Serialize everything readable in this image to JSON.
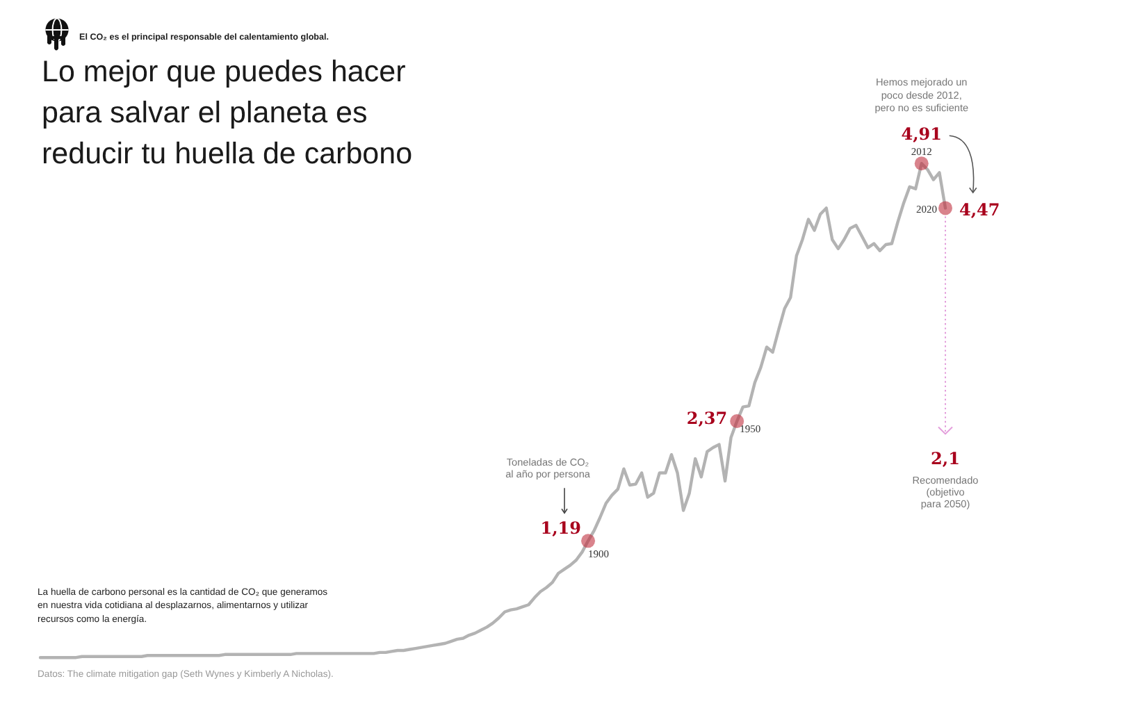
{
  "chart_data": {
    "type": "line",
    "title": "Lo mejor que puedes hacer\npara salvar el planeta es\nreducir tu huella de carbono",
    "subtitle": "El CO₂ es el principal responsable del calentamiento global.",
    "ylabel": "Toneladas de CO₂\nal año por persona",
    "color": "#b3b3b3",
    "categories": [
      null,
      null,
      null,
      null,
      null,
      null,
      null,
      null,
      null,
      null,
      null,
      null,
      null,
      null,
      null,
      null,
      null,
      null,
      null,
      null,
      null,
      null,
      null,
      null,
      null,
      null,
      null,
      null,
      null,
      null,
      null,
      null,
      null,
      null,
      null,
      null,
      null,
      null,
      null,
      null,
      null,
      null,
      null,
      null,
      null,
      null,
      null,
      null,
      null,
      null,
      null,
      null,
      null,
      null,
      null,
      null,
      null,
      null,
      null,
      null,
      null,
      null,
      null,
      null,
      null,
      null,
      null,
      null,
      null,
      null,
      null,
      null,
      null,
      null,
      null,
      null,
      null,
      null,
      null,
      null,
      null,
      null,
      null,
      null,
      null,
      null,
      null,
      null,
      null,
      null,
      null,
      null,
      null,
      null,
      null,
      null,
      null,
      null,
      null,
      null,
      null,
      null,
      null,
      null,
      null,
      null,
      null,
      null,
      null,
      null,
      null,
      null,
      null,
      null,
      null,
      null,
      null,
      null,
      null,
      null,
      null,
      null,
      null,
      null,
      null,
      null,
      null,
      null,
      null,
      null,
      null,
      null,
      null,
      null,
      null,
      null,
      null,
      null,
      null,
      null,
      null,
      null,
      null,
      null,
      null,
      null,
      null,
      null,
      null,
      null,
      null,
      null,
      null
    ],
    "values": [
      0.04,
      0.04,
      0.04,
      0.04,
      0.04,
      0.04,
      0.04,
      0.05,
      0.05,
      0.05,
      0.05,
      0.05,
      0.05,
      0.05,
      0.05,
      0.05,
      0.05,
      0.05,
      0.06,
      0.06,
      0.06,
      0.06,
      0.06,
      0.06,
      0.06,
      0.06,
      0.06,
      0.06,
      0.06,
      0.06,
      0.06,
      0.07,
      0.07,
      0.07,
      0.07,
      0.07,
      0.07,
      0.07,
      0.07,
      0.07,
      0.07,
      0.07,
      0.07,
      0.08,
      0.08,
      0.08,
      0.08,
      0.08,
      0.08,
      0.08,
      0.08,
      0.08,
      0.08,
      0.08,
      0.08,
      0.08,
      0.08,
      0.09,
      0.09,
      0.1,
      0.11,
      0.11,
      0.12,
      0.13,
      0.14,
      0.15,
      0.16,
      0.17,
      0.18,
      0.2,
      0.22,
      0.23,
      0.26,
      0.28,
      0.31,
      0.34,
      0.38,
      0.43,
      0.49,
      0.51,
      0.52,
      0.54,
      0.56,
      0.63,
      0.69,
      0.73,
      0.78,
      0.87,
      0.91,
      0.95,
      1.0,
      1.08,
      1.19,
      1.29,
      1.42,
      1.56,
      1.64,
      1.7,
      1.9,
      1.74,
      1.75,
      1.86,
      1.62,
      1.66,
      1.86,
      1.86,
      2.04,
      1.86,
      1.49,
      1.66,
      2.0,
      1.82,
      2.07,
      2.11,
      2.14,
      1.78,
      2.21,
      2.37,
      2.51,
      2.52,
      2.75,
      2.9,
      3.1,
      3.05,
      3.27,
      3.48,
      3.59,
      4.0,
      4.16,
      4.36,
      4.25,
      4.41,
      4.47,
      4.16,
      4.07,
      4.16,
      4.27,
      4.3,
      4.19,
      4.08,
      4.12,
      4.05,
      4.11,
      4.12,
      4.33,
      4.52,
      4.68,
      4.66,
      4.91,
      4.85,
      4.75,
      4.82,
      4.47
    ],
    "value_labels": [
      null,
      null,
      null,
      null,
      null,
      null,
      null,
      null,
      null,
      null,
      null,
      null,
      null,
      null,
      null,
      null,
      null,
      null,
      null,
      null,
      null,
      null,
      null,
      null,
      null,
      null,
      null,
      null,
      null,
      null,
      null,
      null,
      null,
      null,
      null,
      null,
      null,
      null,
      null,
      null,
      null,
      null,
      null,
      null,
      null,
      null,
      null,
      null,
      null,
      null,
      null,
      null,
      null,
      null,
      null,
      null,
      null,
      null,
      null,
      null,
      null,
      null,
      null,
      null,
      null,
      null,
      null,
      null,
      null,
      null,
      null,
      null,
      null,
      null,
      null,
      null,
      null,
      null,
      null,
      null,
      null,
      null,
      null,
      null,
      null,
      null,
      null,
      null,
      null,
      null,
      null,
      null,
      "1,19",
      null,
      null,
      null,
      null,
      null,
      null,
      null,
      null,
      null,
      null,
      null,
      null,
      null,
      null,
      null,
      null,
      null,
      null,
      null,
      null,
      null,
      null,
      null,
      null,
      "2,37",
      null,
      null,
      null,
      null,
      null,
      null,
      null,
      null,
      null,
      null,
      null,
      null,
      null,
      null,
      null,
      null,
      null,
      null,
      null,
      null,
      null,
      null,
      null,
      null,
      null,
      null,
      null,
      null,
      null,
      null,
      "4,91",
      null,
      null,
      null,
      "4,47"
    ],
    "annotations": [
      "1900",
      "1950",
      "2012",
      "2020",
      "Hemos mejorado un\npoco desde 2012,\npero no es suficiente",
      "2,1",
      "Recomendado\n(objetivo\npara 2050)",
      "La huella de carbono personal es la cantidad de CO₂ que generamos\nen nuestra vida cotidiana al desplazarnos, alimentarnos y utilizar\nrecursos como la energía.",
      "Datos: The climate mitigation gap (Seth Wynes y Kimberly A Nicholas)."
    ]
  }
}
